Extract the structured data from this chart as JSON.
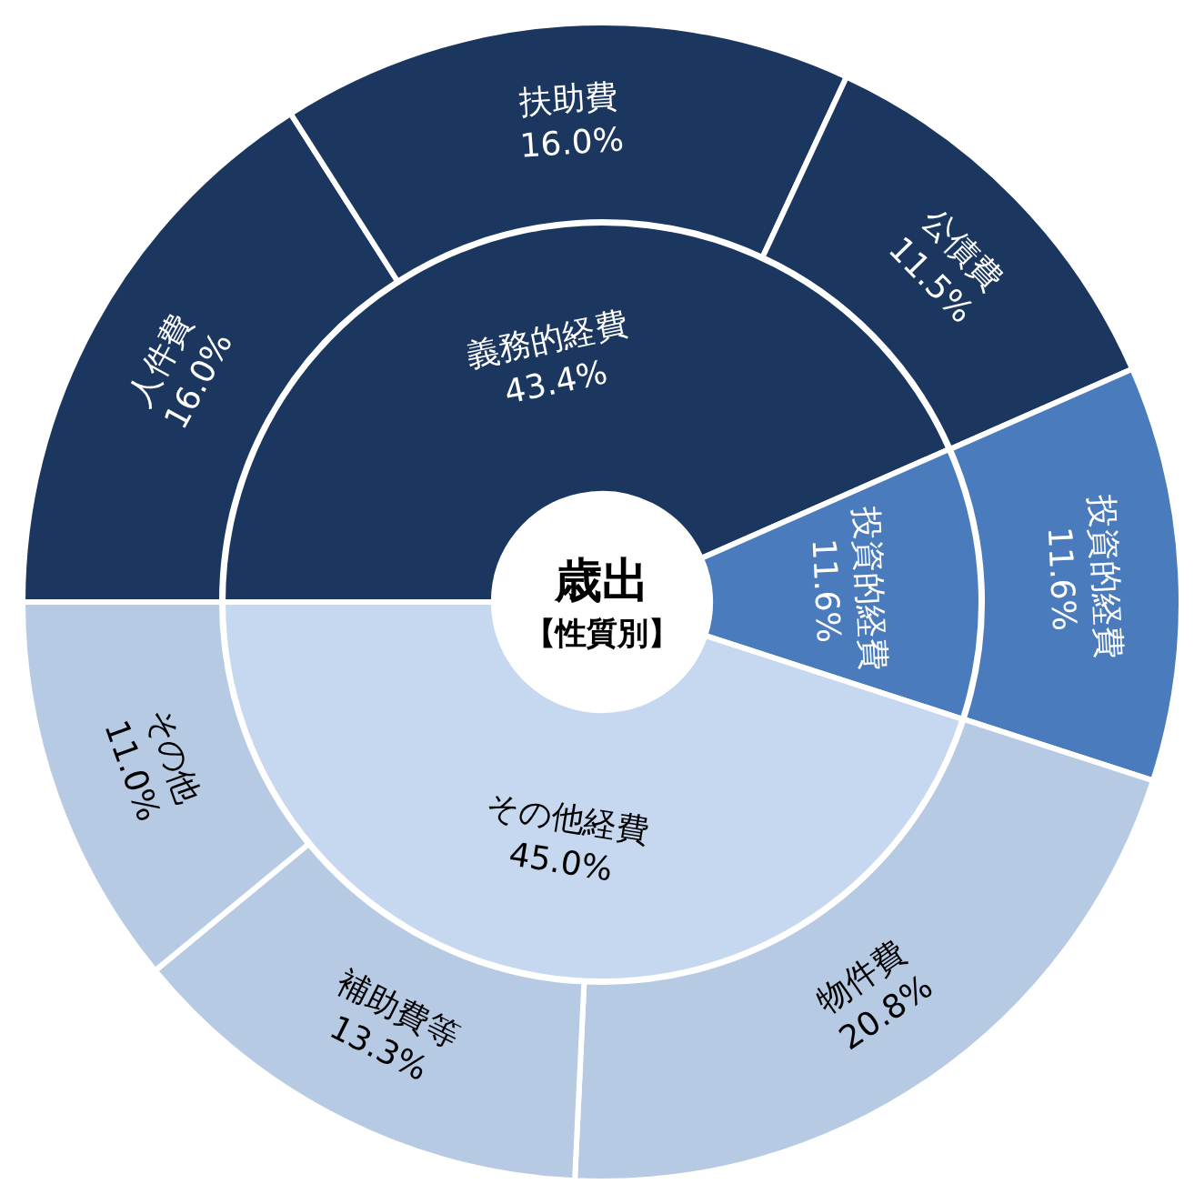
{
  "chart_data": [
    {
      "type": "donut",
      "title": "歳出",
      "subtitle": "【性質別】",
      "legend": false,
      "categories": [
        "義務的経費",
        "投資的経費",
        "その他経費"
      ],
      "values": [
        43.4,
        11.6,
        45.0
      ],
      "value_labels": [
        "43.4%",
        "11.6%",
        "45.0%"
      ],
      "colors": [
        "#1b365f",
        "#4a7bbd",
        "#c6d8ef"
      ]
    },
    {
      "type": "donut",
      "legend": false,
      "categories": [
        "人件費",
        "扶助費",
        "公債費",
        "投資的経費",
        "物件費",
        "補助費等",
        "その他"
      ],
      "values": [
        16.0,
        16.0,
        11.5,
        11.6,
        20.8,
        13.3,
        11.0
      ],
      "value_labels": [
        "16.0%",
        "16.0%",
        "11.5%",
        "11.6%",
        "20.8%",
        "13.3%",
        "11.0%"
      ],
      "colors": [
        "#1b365f",
        "#1b365f",
        "#1b365f",
        "#4a7bbd",
        "#b6cae3",
        "#b6cae3",
        "#b6cae3"
      ]
    }
  ]
}
